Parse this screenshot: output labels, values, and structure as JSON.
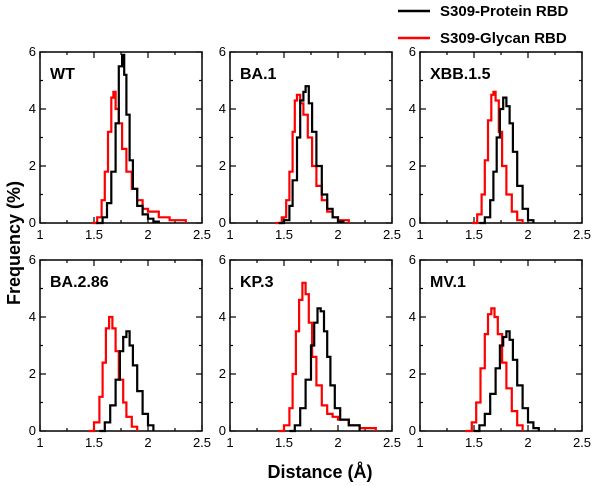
{
  "figure": {
    "xlabel": "Distance (Å)",
    "ylabel": "Frequency (%)"
  },
  "legend": {
    "placement": "top-right",
    "items": [
      {
        "label": "S309-Protein RBD",
        "color": "#000000"
      },
      {
        "label": "S309-Glycan RBD",
        "color": "#ff0000"
      }
    ]
  },
  "chart_data": [
    {
      "type": "line",
      "title": "WT",
      "xlim": [
        1,
        2.5
      ],
      "ylim": [
        0,
        6
      ],
      "xticks": [
        "1",
        "1.5",
        "2",
        "2.5"
      ],
      "yticks": [
        "0",
        "2",
        "4",
        "6"
      ],
      "series": [
        {
          "name": "S309-Protein RBD",
          "color": "#000000",
          "x": [
            1.52,
            1.58,
            1.62,
            1.66,
            1.7,
            1.73,
            1.76,
            1.78,
            1.8,
            1.83,
            1.86,
            1.9,
            1.95,
            2.0,
            2.05,
            2.1
          ],
          "y": [
            0,
            0.2,
            0.7,
            1.8,
            3.5,
            5.5,
            5.9,
            5.2,
            3.8,
            2.2,
            1.2,
            0.6,
            0.3,
            0.15,
            0.05,
            0
          ]
        },
        {
          "name": "S309-Glycan RBD",
          "color": "#ff0000",
          "x": [
            1.48,
            1.53,
            1.57,
            1.6,
            1.63,
            1.66,
            1.68,
            1.7,
            1.73,
            1.76,
            1.8,
            1.85,
            1.9,
            1.95,
            2.0,
            2.1,
            2.2,
            2.35
          ],
          "y": [
            0,
            0.2,
            0.8,
            1.8,
            3.2,
            4.4,
            4.6,
            4.0,
            3.5,
            2.6,
            1.8,
            1.2,
            0.8,
            0.5,
            0.4,
            0.2,
            0.1,
            0
          ]
        }
      ]
    },
    {
      "type": "line",
      "title": "BA.1",
      "xlim": [
        1,
        2.5
      ],
      "ylim": [
        0,
        6
      ],
      "xticks": [
        "1",
        "1.5",
        "2",
        "2.5"
      ],
      "yticks": [
        "0",
        "2",
        "4",
        "6"
      ],
      "series": [
        {
          "name": "S309-Protein RBD",
          "color": "#000000",
          "x": [
            1.45,
            1.5,
            1.55,
            1.58,
            1.62,
            1.65,
            1.68,
            1.7,
            1.73,
            1.76,
            1.8,
            1.85,
            1.9,
            1.95,
            2.0,
            2.05
          ],
          "y": [
            0,
            0.1,
            0.6,
            1.5,
            3.0,
            4.3,
            4.6,
            4.8,
            4.2,
            3.2,
            2.0,
            1.0,
            0.5,
            0.2,
            0.05,
            0
          ]
        },
        {
          "name": "S309-Glycan RBD",
          "color": "#ff0000",
          "x": [
            1.42,
            1.48,
            1.52,
            1.55,
            1.58,
            1.6,
            1.62,
            1.65,
            1.68,
            1.72,
            1.76,
            1.8,
            1.85,
            1.9,
            1.95,
            2.0,
            2.1
          ],
          "y": [
            0,
            0.2,
            0.8,
            1.8,
            3.2,
            4.3,
            4.5,
            4.2,
            3.8,
            3.0,
            2.0,
            1.3,
            0.8,
            0.4,
            0.2,
            0.1,
            0
          ]
        }
      ]
    },
    {
      "type": "line",
      "title": "XBB.1.5",
      "xlim": [
        1,
        2.5
      ],
      "ylim": [
        0,
        6
      ],
      "xticks": [
        "1",
        "1.5",
        "2",
        "2.5"
      ],
      "yticks": [
        "0",
        "2",
        "4",
        "6"
      ],
      "series": [
        {
          "name": "S309-Protein RBD",
          "color": "#000000",
          "x": [
            1.55,
            1.6,
            1.65,
            1.68,
            1.71,
            1.74,
            1.77,
            1.8,
            1.83,
            1.86,
            1.9,
            1.95,
            2.0,
            2.05
          ],
          "y": [
            0,
            0.2,
            0.8,
            1.8,
            3.0,
            4.0,
            4.4,
            4.1,
            3.5,
            2.5,
            1.3,
            0.5,
            0.1,
            0
          ]
        },
        {
          "name": "S309-Glycan RBD",
          "color": "#ff0000",
          "x": [
            1.48,
            1.53,
            1.57,
            1.6,
            1.63,
            1.66,
            1.68,
            1.7,
            1.73,
            1.76,
            1.8,
            1.85,
            1.9,
            1.95
          ],
          "y": [
            0,
            0.3,
            1.0,
            2.2,
            3.6,
            4.5,
            4.6,
            4.3,
            3.2,
            2.0,
            1.0,
            0.4,
            0.1,
            0
          ]
        }
      ]
    },
    {
      "type": "line",
      "title": "BA.2.86",
      "xlim": [
        1,
        2.5
      ],
      "ylim": [
        0,
        6
      ],
      "xticks": [
        "1",
        "1.5",
        "2",
        "2.5"
      ],
      "yticks": [
        "0",
        "2",
        "4",
        "6"
      ],
      "series": [
        {
          "name": "S309-Protein RBD",
          "color": "#000000",
          "x": [
            1.55,
            1.6,
            1.65,
            1.7,
            1.74,
            1.77,
            1.8,
            1.83,
            1.86,
            1.9,
            1.95,
            2.0,
            2.05
          ],
          "y": [
            0,
            0.3,
            0.9,
            1.8,
            2.8,
            3.3,
            3.5,
            3.0,
            2.3,
            1.4,
            0.6,
            0.2,
            0
          ]
        },
        {
          "name": "S309-Glycan RBD",
          "color": "#ff0000",
          "x": [
            1.45,
            1.5,
            1.55,
            1.58,
            1.61,
            1.64,
            1.67,
            1.7,
            1.73,
            1.77,
            1.8,
            1.85,
            1.9
          ],
          "y": [
            0,
            0.3,
            1.2,
            2.4,
            3.6,
            4.0,
            3.6,
            2.8,
            1.8,
            1.0,
            0.5,
            0.15,
            0
          ]
        }
      ]
    },
    {
      "type": "line",
      "title": "KP.3",
      "xlim": [
        1,
        2.5
      ],
      "ylim": [
        0,
        6
      ],
      "xticks": [
        "1",
        "1.5",
        "2",
        "2.5"
      ],
      "yticks": [
        "0",
        "2",
        "4",
        "6"
      ],
      "series": [
        {
          "name": "S309-Protein RBD",
          "color": "#000000",
          "x": [
            1.55,
            1.6,
            1.65,
            1.7,
            1.75,
            1.78,
            1.81,
            1.84,
            1.87,
            1.9,
            1.93,
            1.97,
            2.02,
            2.1,
            2.2
          ],
          "y": [
            0,
            0.2,
            0.8,
            1.8,
            3.0,
            3.8,
            4.3,
            4.2,
            3.5,
            2.6,
            1.6,
            0.8,
            0.4,
            0.2,
            0
          ]
        },
        {
          "name": "S309-Glycan RBD",
          "color": "#ff0000",
          "x": [
            1.45,
            1.5,
            1.55,
            1.58,
            1.61,
            1.64,
            1.67,
            1.7,
            1.73,
            1.76,
            1.8,
            1.85,
            1.9,
            1.95,
            2.0,
            2.1,
            2.2,
            2.35
          ],
          "y": [
            0,
            0.2,
            0.8,
            2.0,
            3.5,
            4.6,
            5.2,
            4.8,
            3.8,
            2.6,
            1.6,
            0.9,
            0.6,
            0.5,
            0.4,
            0.2,
            0.1,
            0
          ]
        }
      ]
    },
    {
      "type": "line",
      "title": "MV.1",
      "xlim": [
        1,
        2.5
      ],
      "ylim": [
        0,
        6
      ],
      "xticks": [
        "1",
        "1.5",
        "2",
        "2.5"
      ],
      "yticks": [
        "0",
        "2",
        "4",
        "6"
      ],
      "series": [
        {
          "name": "S309-Protein RBD",
          "color": "#000000",
          "x": [
            1.5,
            1.55,
            1.6,
            1.65,
            1.7,
            1.74,
            1.77,
            1.8,
            1.83,
            1.86,
            1.9,
            1.95,
            2.0,
            2.05,
            2.1
          ],
          "y": [
            0,
            0.2,
            0.6,
            1.3,
            2.2,
            3.0,
            3.3,
            3.5,
            3.2,
            2.5,
            1.6,
            0.8,
            0.3,
            0.1,
            0
          ]
        },
        {
          "name": "S309-Glycan RBD",
          "color": "#ff0000",
          "x": [
            1.42,
            1.48,
            1.52,
            1.56,
            1.6,
            1.63,
            1.66,
            1.69,
            1.72,
            1.76,
            1.8,
            1.85,
            1.9,
            1.95
          ],
          "y": [
            0,
            0.3,
            1.0,
            2.2,
            3.4,
            4.1,
            4.3,
            4.0,
            3.4,
            2.4,
            1.5,
            0.7,
            0.2,
            0
          ]
        }
      ]
    }
  ]
}
